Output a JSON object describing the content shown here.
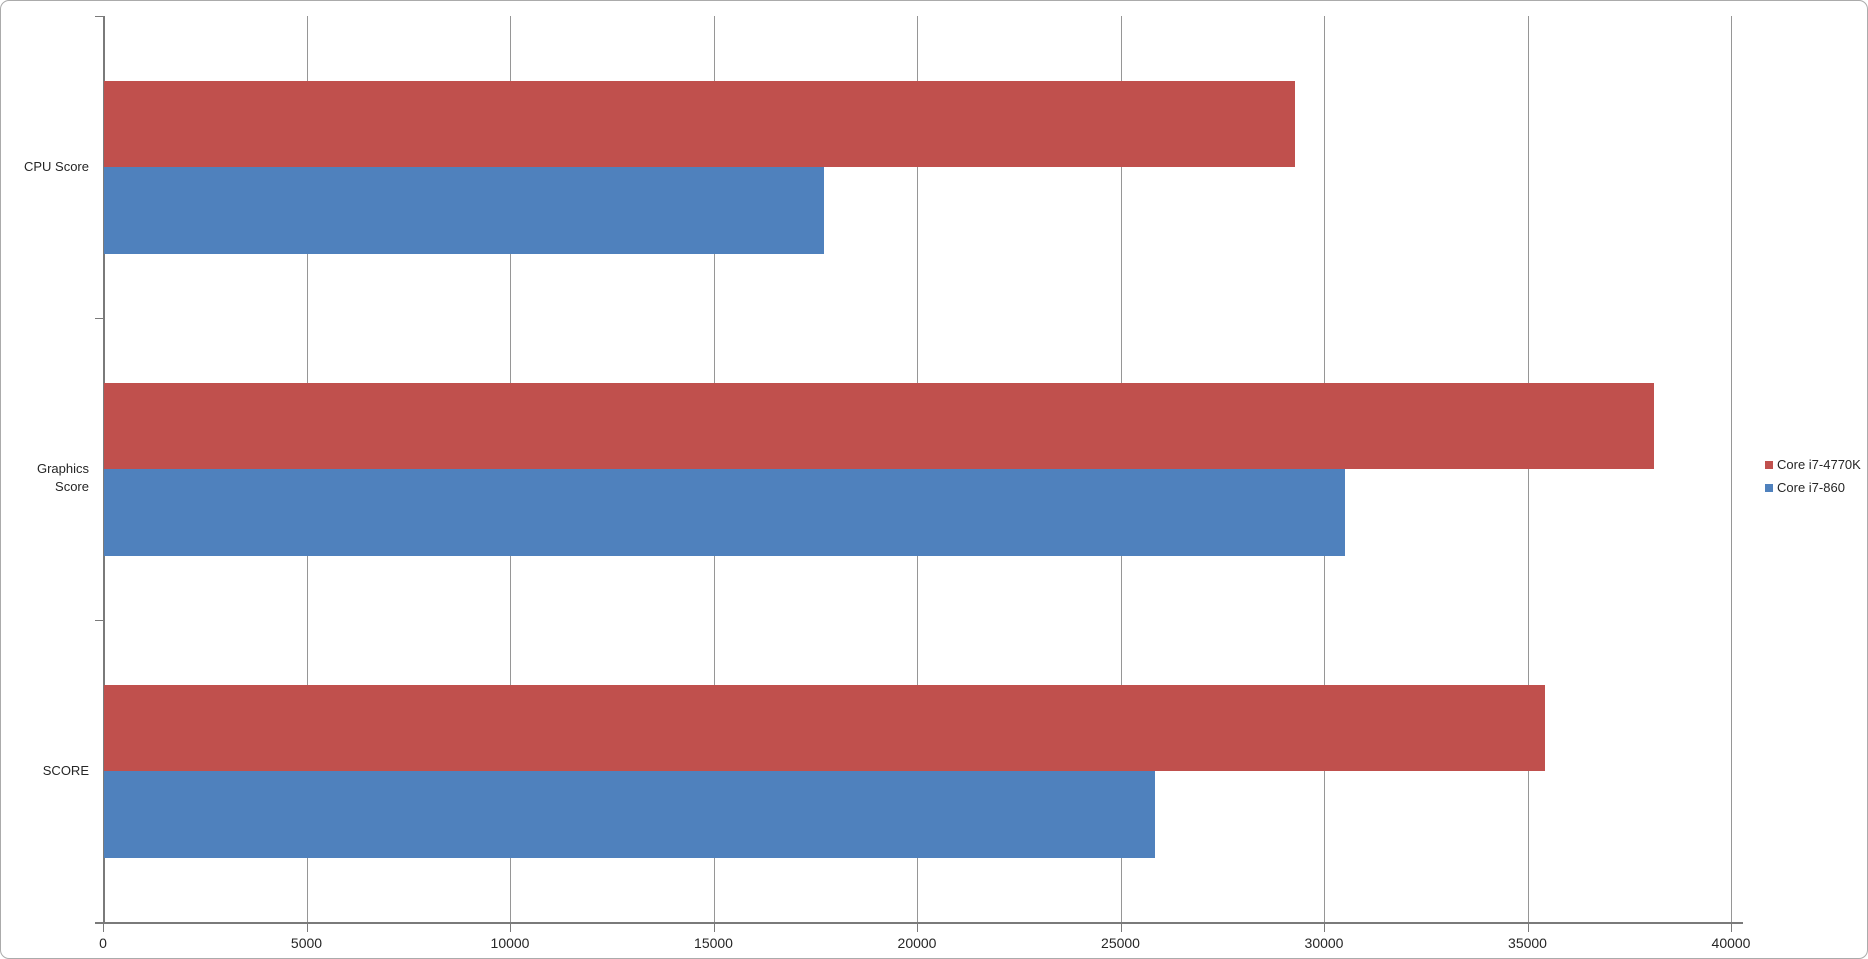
{
  "chart_data": {
    "type": "bar",
    "orientation": "horizontal",
    "title": "",
    "xlabel": "",
    "ylabel": "",
    "categories": [
      "CPU Score",
      "Graphics Score",
      "SCORE"
    ],
    "series": [
      {
        "name": "Core i7-4770K",
        "color": "#C0504D",
        "values": [
          29260,
          38080,
          35400
        ]
      },
      {
        "name": "Core i7-860",
        "color": "#4F81BD",
        "values": [
          17690,
          30490,
          25820
        ]
      }
    ],
    "xlim": [
      0,
      40000
    ],
    "x_tick_step": 5000,
    "x_tick_labels": [
      "0",
      "5000",
      "10000",
      "15000",
      "20000",
      "25000",
      "30000",
      "35000",
      "40000"
    ],
    "grid": true,
    "legend_position": "right"
  },
  "colors": {
    "background": "#FFFFFF",
    "frame_border": "#ABABAB",
    "gridline": "#969696",
    "axis": "#7A7A7A",
    "text": "#262626"
  }
}
